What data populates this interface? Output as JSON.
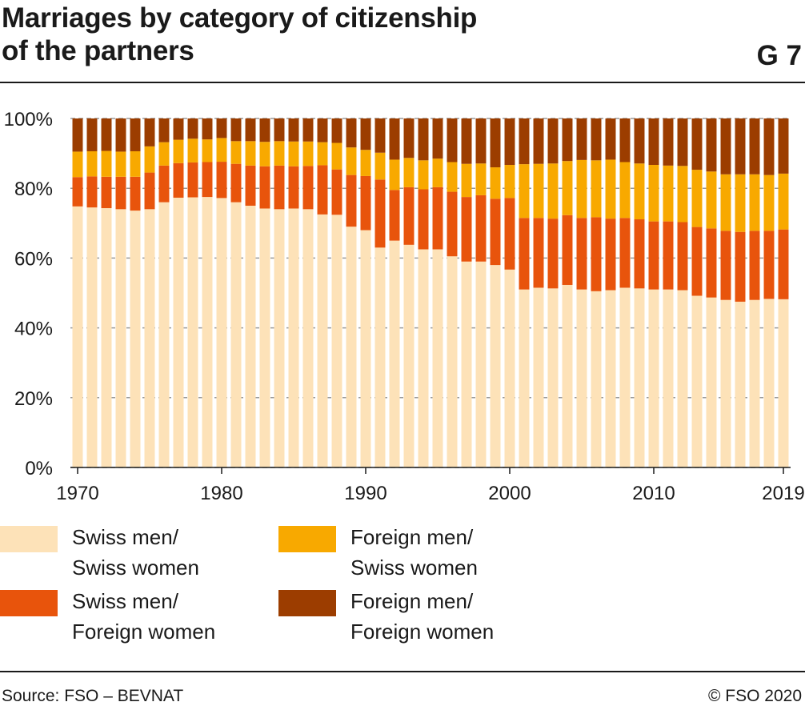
{
  "header": {
    "title_line1": "Marriages by category of citizenship",
    "title_line2": "of the partners",
    "graphic_number": "G 7"
  },
  "footer": {
    "source": "Source: FSO – BEVNAT",
    "copyright": "© FSO 2020"
  },
  "colors": {
    "swiss_swiss": "#fde2b8",
    "swiss_foreign": "#e8540c",
    "foreign_swiss": "#f8a900",
    "foreign_foreign": "#9c3d00",
    "grid": "#9a9a9a",
    "text": "#1a1a1a"
  },
  "chart_data": {
    "type": "bar",
    "stacked": true,
    "title": "Marriages by category of citizenship of the partners",
    "xlabel": "",
    "ylabel": "",
    "ylim": [
      0,
      100
    ],
    "y_ticks": [
      "0%",
      "20%",
      "40%",
      "60%",
      "80%",
      "100%"
    ],
    "y_tick_values": [
      0,
      20,
      40,
      60,
      80,
      100
    ],
    "x_tick_labels": [
      "1970",
      "1980",
      "1990",
      "2000",
      "2010",
      "2019"
    ],
    "x_tick_years": [
      1970,
      1980,
      1990,
      2000,
      2010,
      2019
    ],
    "grid": "horizontal dashed",
    "legend_position": "bottom",
    "categories": [
      1970,
      1971,
      1972,
      1973,
      1974,
      1975,
      1976,
      1977,
      1978,
      1979,
      1980,
      1981,
      1982,
      1983,
      1984,
      1985,
      1986,
      1987,
      1988,
      1989,
      1990,
      1991,
      1992,
      1993,
      1994,
      1995,
      1996,
      1997,
      1998,
      1999,
      2000,
      2001,
      2002,
      2003,
      2004,
      2005,
      2006,
      2007,
      2008,
      2009,
      2010,
      2011,
      2012,
      2013,
      2014,
      2015,
      2016,
      2017,
      2018,
      2019
    ],
    "series": [
      {
        "name_line1": "Swiss men/",
        "name_line2": "Swiss women",
        "color_key": "swiss_swiss",
        "values": [
          74.8,
          74.5,
          74.3,
          74.0,
          73.6,
          74.0,
          76.0,
          77.3,
          77.4,
          77.5,
          77.2,
          76.0,
          75.0,
          74.2,
          74.0,
          74.2,
          74.0,
          72.5,
          72.4,
          69.0,
          68.0,
          63.0,
          65.0,
          63.8,
          62.5,
          62.5,
          60.5,
          59.0,
          59.0,
          58.0,
          56.7,
          51.0,
          51.5,
          51.3,
          52.3,
          51.0,
          50.5,
          50.8,
          51.5,
          51.3,
          51.0,
          51.0,
          50.8,
          49.2,
          48.7,
          48.0,
          47.5,
          48.0,
          48.3,
          48.2
        ]
      },
      {
        "name_line1": "Swiss men/",
        "name_line2": "Foreign women",
        "color_key": "swiss_foreign",
        "values": [
          8.4,
          8.9,
          9.0,
          9.3,
          9.7,
          10.5,
          10.5,
          9.9,
          10.0,
          10.0,
          10.4,
          11.0,
          11.5,
          12.1,
          12.5,
          12.1,
          12.4,
          14.1,
          13.0,
          14.8,
          15.5,
          19.5,
          14.5,
          16.5,
          17.2,
          17.8,
          18.5,
          18.5,
          19.0,
          19.0,
          20.5,
          20.5,
          20.0,
          20.0,
          20.0,
          20.5,
          21.2,
          20.5,
          20.0,
          19.8,
          19.5,
          19.5,
          19.5,
          19.7,
          19.8,
          19.8,
          20.0,
          19.8,
          19.5,
          20.0
        ]
      },
      {
        "name_line1": "Foreign men/",
        "name_line2": "Swiss women",
        "color_key": "foreign_swiss",
        "values": [
          7.3,
          7.2,
          7.4,
          7.2,
          7.3,
          7.5,
          6.7,
          6.7,
          6.8,
          6.5,
          6.8,
          6.5,
          7.0,
          7.0,
          7.0,
          7.1,
          7.0,
          6.6,
          7.6,
          7.9,
          7.5,
          7.7,
          8.7,
          8.4,
          8.3,
          8.2,
          8.5,
          9.5,
          9.1,
          9.0,
          9.5,
          15.4,
          15.5,
          15.8,
          15.5,
          16.6,
          16.3,
          16.9,
          16.0,
          16.0,
          16.2,
          16.0,
          16.1,
          16.4,
          16.3,
          16.2,
          16.5,
          16.2,
          16.0,
          16.0
        ]
      },
      {
        "name_line1": "Foreign men/",
        "name_line2": "Foreign women",
        "color_key": "foreign_foreign",
        "values": [
          9.5,
          9.4,
          9.3,
          9.5,
          9.4,
          8.0,
          6.8,
          6.1,
          5.8,
          6.0,
          5.6,
          6.5,
          6.5,
          6.7,
          6.5,
          6.6,
          6.6,
          6.8,
          7.0,
          8.3,
          9.0,
          9.8,
          11.8,
          11.3,
          12.0,
          11.5,
          12.5,
          13.0,
          12.9,
          14.0,
          13.3,
          13.1,
          13.0,
          12.9,
          12.2,
          11.9,
          12.0,
          11.8,
          12.5,
          12.9,
          13.3,
          13.5,
          13.6,
          14.7,
          15.2,
          16.0,
          16.0,
          16.0,
          16.2,
          15.8
        ]
      }
    ]
  }
}
